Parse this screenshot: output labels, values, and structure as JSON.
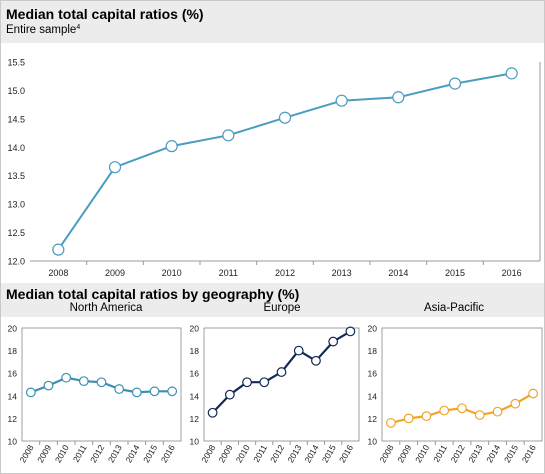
{
  "main_title": "Median total capital ratios (%)",
  "main_subtitle": "Entire sample",
  "main_subtitle_note": "4",
  "geo_title": "Median total capital ratios by geography (%)",
  "colors": {
    "entire": "#4a9cc0",
    "north_america": "#3b8fb5",
    "europe": "#132a55",
    "asia_pacific": "#f0a52a",
    "band": "#ececec",
    "axis": "#999999"
  },
  "chart_data": [
    {
      "type": "line",
      "panel": "entire-sample",
      "x": [
        "2008",
        "2009",
        "2010",
        "2011",
        "2012",
        "2013",
        "2014",
        "2015",
        "2016"
      ],
      "values": [
        12.2,
        13.65,
        14.02,
        14.21,
        14.52,
        14.82,
        14.88,
        15.12,
        15.3
      ],
      "ylim": [
        12.0,
        15.5
      ],
      "yticks": [
        "12.0",
        "12.5",
        "13.0",
        "13.5",
        "14.0",
        "14.5",
        "15.0",
        "15.5"
      ],
      "grid": false
    },
    {
      "type": "line",
      "panel": "north-america",
      "title": "North America",
      "x": [
        "2008",
        "2009",
        "2010",
        "2011",
        "2012",
        "2013",
        "2014",
        "2015",
        "2016"
      ],
      "values": [
        14.3,
        14.9,
        15.6,
        15.3,
        15.2,
        14.6,
        14.3,
        14.4,
        14.4
      ],
      "ylim": [
        10,
        20
      ],
      "yticks": [
        "10",
        "12",
        "14",
        "16",
        "18",
        "20"
      ],
      "grid": false
    },
    {
      "type": "line",
      "panel": "europe",
      "title": "Europe",
      "x": [
        "2008",
        "2009",
        "2010",
        "2011",
        "2012",
        "2013",
        "2014",
        "2015",
        "2016"
      ],
      "values": [
        12.5,
        14.1,
        15.2,
        15.2,
        16.1,
        18.0,
        17.1,
        18.8,
        19.7
      ],
      "ylim": [
        10,
        20
      ],
      "yticks": [
        "10",
        "12",
        "14",
        "16",
        "18",
        "20"
      ],
      "grid": false
    },
    {
      "type": "line",
      "panel": "asia-pacific",
      "title": "Asia-Pacific",
      "x": [
        "2008",
        "2009",
        "2010",
        "2011",
        "2012",
        "2013",
        "2014",
        "2015",
        "2016"
      ],
      "values": [
        11.6,
        12.0,
        12.2,
        12.7,
        12.9,
        12.3,
        12.6,
        13.3,
        14.2
      ],
      "ylim": [
        10,
        20
      ],
      "yticks": [
        "10",
        "12",
        "14",
        "16",
        "18",
        "20"
      ],
      "grid": false
    }
  ]
}
